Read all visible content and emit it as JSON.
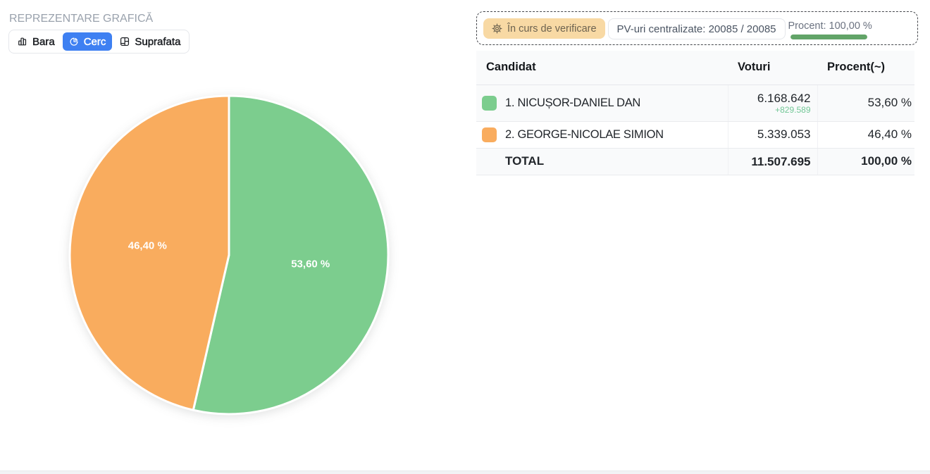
{
  "page": {
    "section_title": "REPREZENTARE GRAFICĂ"
  },
  "tabs": [
    {
      "label": "Bara",
      "icon": "bar-chart-icon",
      "active": false
    },
    {
      "label": "Cerc",
      "icon": "pie-chart-icon",
      "active": true
    },
    {
      "label": "Suprafata",
      "icon": "treemap-icon",
      "active": false
    }
  ],
  "status": {
    "badge": {
      "icon": "gear-icon",
      "label": "În curs de verificare",
      "bg": "#f8d9a4"
    },
    "pv_label": "PV-uri centralizate: 20085 / 20085",
    "percent_label": "Procent: 100,00 %",
    "percent_value": 100,
    "progress_color": "#62a468"
  },
  "chart_data": {
    "type": "pie",
    "categories": [
      "1. NICUȘOR-DANIEL DAN",
      "2. GEORGE-NICOLAE SIMION"
    ],
    "values": [
      53.6,
      46.4
    ],
    "slice_labels": [
      "53,60 %",
      "46,40 %"
    ],
    "colors": [
      "#7ccd8e",
      "#f9ac5e"
    ],
    "start_angle_deg": 0,
    "direction": "clockwise",
    "legend": "none",
    "title": ""
  },
  "table": {
    "headers": [
      "Candidat",
      "Voturi",
      "Procent(~)"
    ],
    "rows": [
      {
        "name": "1. NICUȘOR-DANIEL DAN",
        "votes": "6.168.642",
        "diff": "+829.589",
        "percent": "53,60 %",
        "color": "#7ccd8e"
      },
      {
        "name": "2. GEORGE-NICOLAE SIMION",
        "votes": "5.339.053",
        "diff": "",
        "percent": "46,40 %",
        "color": "#f9ac5e"
      }
    ],
    "total": {
      "label": "TOTAL",
      "votes": "11.507.695",
      "percent": "100,00 %"
    }
  },
  "colors": {
    "accent_blue": "#3e80f2",
    "green": "#7ccd8e",
    "orange": "#f9ac5e",
    "diff_green": "#72c796",
    "badge_bg": "#f8d9a4"
  }
}
